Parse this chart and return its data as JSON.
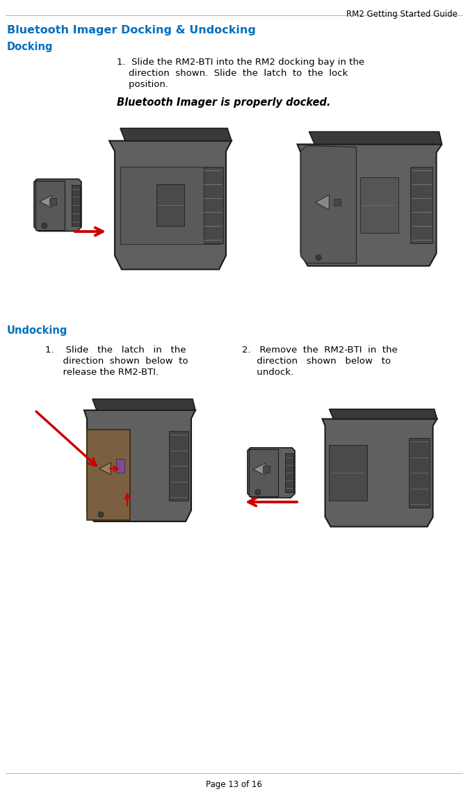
{
  "page_title": "RM2 Getting Started Guide",
  "main_heading": "Bluetooth Imager Docking & Undocking",
  "section1_heading": "Docking",
  "section2_heading": "Undocking",
  "docking_line1": "1.  Slide the RM2-BTI into the RM2 docking bay in the",
  "docking_line2": "    direction  shown.  Slide  the  latch  to  the  lock",
  "docking_line3": "    position.",
  "docking_italic": "Bluetooth Imager is properly docked.",
  "undocking_text1_l1": "1.    Slide   the   latch   in   the",
  "undocking_text1_l2": "      direction  shown  below  to",
  "undocking_text1_l3": "      release the RM2-BTI.",
  "undocking_text2_l1": "2.   Remove  the  RM2-BTI  in  the",
  "undocking_text2_l2": "     direction   shown   below   to",
  "undocking_text2_l3": "     undock.",
  "page_footer": "Page 13 of 16",
  "heading_color": "#0070C0",
  "title_color": "#000000",
  "text_color": "#000000",
  "bg_color": "#FFFFFF",
  "arrow_color": "#CC0000",
  "device_dark": "#454545",
  "device_mid": "#606060",
  "device_light": "#787878",
  "device_edge": "#1a1a1a",
  "device_groove": "#353535",
  "bti_face_color": "#8B7355",
  "bti_purple": "#7B4F8C"
}
